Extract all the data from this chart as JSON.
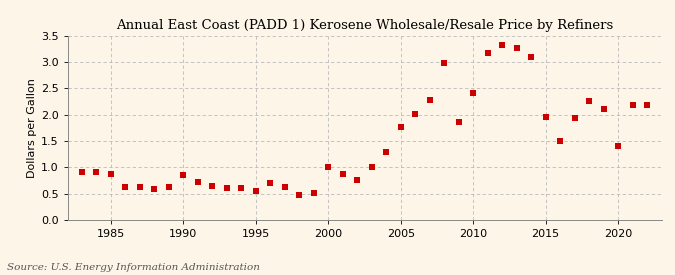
{
  "title": "Annual East Coast (PADD 1) Kerosene Wholesale/Resale Price by Refiners",
  "ylabel": "Dollars per Gallon",
  "source": "Source: U.S. Energy Information Administration",
  "background_color": "#fdf6e8",
  "marker_color": "#cc0000",
  "years": [
    1983,
    1984,
    1985,
    1986,
    1987,
    1988,
    1989,
    1990,
    1991,
    1992,
    1993,
    1994,
    1995,
    1996,
    1997,
    1998,
    1999,
    2000,
    2001,
    2002,
    2003,
    2004,
    2005,
    2006,
    2007,
    2008,
    2009,
    2010,
    2011,
    2012,
    2013,
    2014,
    2015,
    2016,
    2017,
    2018,
    2019,
    2020,
    2021,
    2022
  ],
  "values": [
    0.92,
    0.92,
    0.88,
    0.62,
    0.62,
    0.59,
    0.62,
    0.85,
    0.72,
    0.65,
    0.61,
    0.6,
    0.55,
    0.7,
    0.63,
    0.48,
    0.52,
    1.01,
    0.88,
    0.76,
    1.01,
    1.3,
    1.77,
    2.01,
    2.28,
    2.99,
    1.87,
    2.42,
    3.17,
    3.33,
    3.27,
    3.1,
    1.95,
    1.51,
    1.93,
    2.27,
    2.1,
    1.4,
    2.19,
    2.19
  ],
  "xlim": [
    1982,
    2023
  ],
  "ylim": [
    0.0,
    3.5
  ],
  "yticks": [
    0.0,
    0.5,
    1.0,
    1.5,
    2.0,
    2.5,
    3.0,
    3.5
  ],
  "xticks": [
    1985,
    1990,
    1995,
    2000,
    2005,
    2010,
    2015,
    2020
  ],
  "grid_color": "#bbbbbb",
  "title_fontsize": 9.5,
  "label_fontsize": 8,
  "tick_fontsize": 8,
  "source_fontsize": 7.5
}
